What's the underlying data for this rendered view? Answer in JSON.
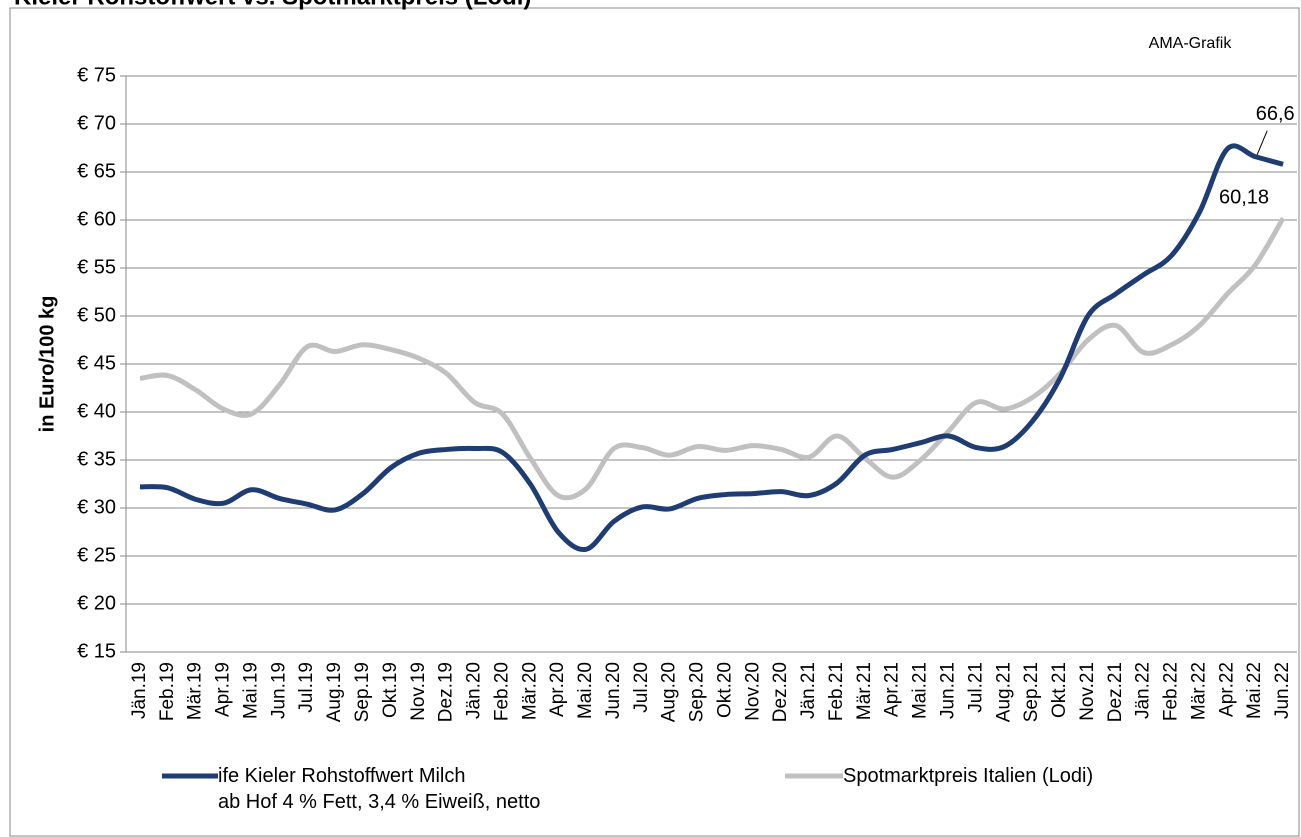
{
  "chart_data": {
    "type": "line",
    "title": "Kieler Rohstoffwert vs. Spotmarktpreis (Lodi)",
    "annotation": "AMA-Grafik",
    "y_label": "in Euro/100 kg",
    "categories": [
      "Jän.19",
      "Feb.19",
      "Mär.19",
      "Apr.19",
      "Mai.19",
      "Jun.19",
      "Jul.19",
      "Aug.19",
      "Sep.19",
      "Okt.19",
      "Nov.19",
      "Dez.19",
      "Jän.20",
      "Feb.20",
      "Mär.20",
      "Apr.20",
      "Mai.20",
      "Jun.20",
      "Jul.20",
      "Aug.20",
      "Sep.20",
      "Okt.20",
      "Nov.20",
      "Dez.20",
      "Jän.21",
      "Feb.21",
      "Mär.21",
      "Apr.21",
      "Mai.21",
      "Jun.21",
      "Jul.21",
      "Aug.21",
      "Sep.21",
      "Okt.21",
      "Nov.21",
      "Dez.21",
      "Jän.22",
      "Feb.22",
      "Mär.22",
      "Apr.22",
      "Mai.22",
      "Jun.22"
    ],
    "series": [
      {
        "name": "ife Kieler Rohstoffwert Milch\nab Hof 4 % Fett, 3,4 % Eiweiß, netto",
        "color": "#1f3d73",
        "values": [
          32.2,
          32.1,
          30.9,
          30.5,
          31.9,
          31.0,
          30.4,
          29.8,
          31.5,
          34.2,
          35.7,
          36.1,
          36.2,
          35.8,
          32.5,
          27.5,
          25.7,
          28.6,
          30.1,
          29.9,
          31.0,
          31.4,
          31.5,
          31.7,
          31.3,
          32.6,
          35.5,
          36.1,
          36.8,
          37.5,
          36.3,
          36.4,
          39.0,
          43.5,
          50.0,
          52.3,
          54.3,
          56.3,
          60.8,
          67.4,
          66.6,
          65.8
        ],
        "value_labels": [
          null,
          null,
          null,
          null,
          null,
          null,
          null,
          null,
          null,
          null,
          null,
          null,
          null,
          null,
          null,
          null,
          null,
          null,
          null,
          null,
          null,
          null,
          null,
          null,
          null,
          null,
          null,
          null,
          null,
          null,
          null,
          null,
          null,
          null,
          null,
          null,
          null,
          null,
          null,
          null,
          "66,6",
          null
        ]
      },
      {
        "name": "Spotmarktpreis Italien (Lodi)",
        "color": "#c0c0c0",
        "values": [
          43.5,
          43.8,
          42.3,
          40.3,
          39.8,
          42.8,
          46.8,
          46.3,
          47.0,
          46.5,
          45.6,
          44.0,
          41.0,
          39.8,
          35.2,
          31.3,
          32.0,
          36.2,
          36.3,
          35.5,
          36.4,
          36.0,
          36.5,
          36.1,
          35.3,
          37.5,
          35.2,
          33.2,
          35.0,
          38.0,
          41.0,
          40.3,
          41.5,
          44.0,
          47.5,
          49.0,
          46.2,
          47.0,
          49.0,
          52.3,
          55.3,
          60.18
        ],
        "value_labels": [
          null,
          null,
          null,
          null,
          null,
          null,
          null,
          null,
          null,
          null,
          null,
          null,
          null,
          null,
          null,
          null,
          null,
          null,
          null,
          null,
          null,
          null,
          null,
          null,
          null,
          null,
          null,
          null,
          null,
          null,
          null,
          null,
          null,
          null,
          null,
          null,
          null,
          null,
          null,
          null,
          null,
          "60,18"
        ]
      }
    ],
    "ylim": [
      15,
      75
    ],
    "yticks": [
      {
        "value": 15,
        "label": "€ 15"
      },
      {
        "value": 20,
        "label": "€ 20"
      },
      {
        "value": 25,
        "label": "€ 25"
      },
      {
        "value": 30,
        "label": "€ 30"
      },
      {
        "value": 35,
        "label": "€ 35"
      },
      {
        "value": 40,
        "label": "€ 40"
      },
      {
        "value": 45,
        "label": "€ 45"
      },
      {
        "value": 50,
        "label": "€ 50"
      },
      {
        "value": 55,
        "label": "€ 55"
      },
      {
        "value": 60,
        "label": "€ 60"
      },
      {
        "value": 65,
        "label": "€ 65"
      },
      {
        "value": 70,
        "label": "€ 70"
      },
      {
        "value": 75,
        "label": "€ 75"
      }
    ],
    "grid": true
  }
}
